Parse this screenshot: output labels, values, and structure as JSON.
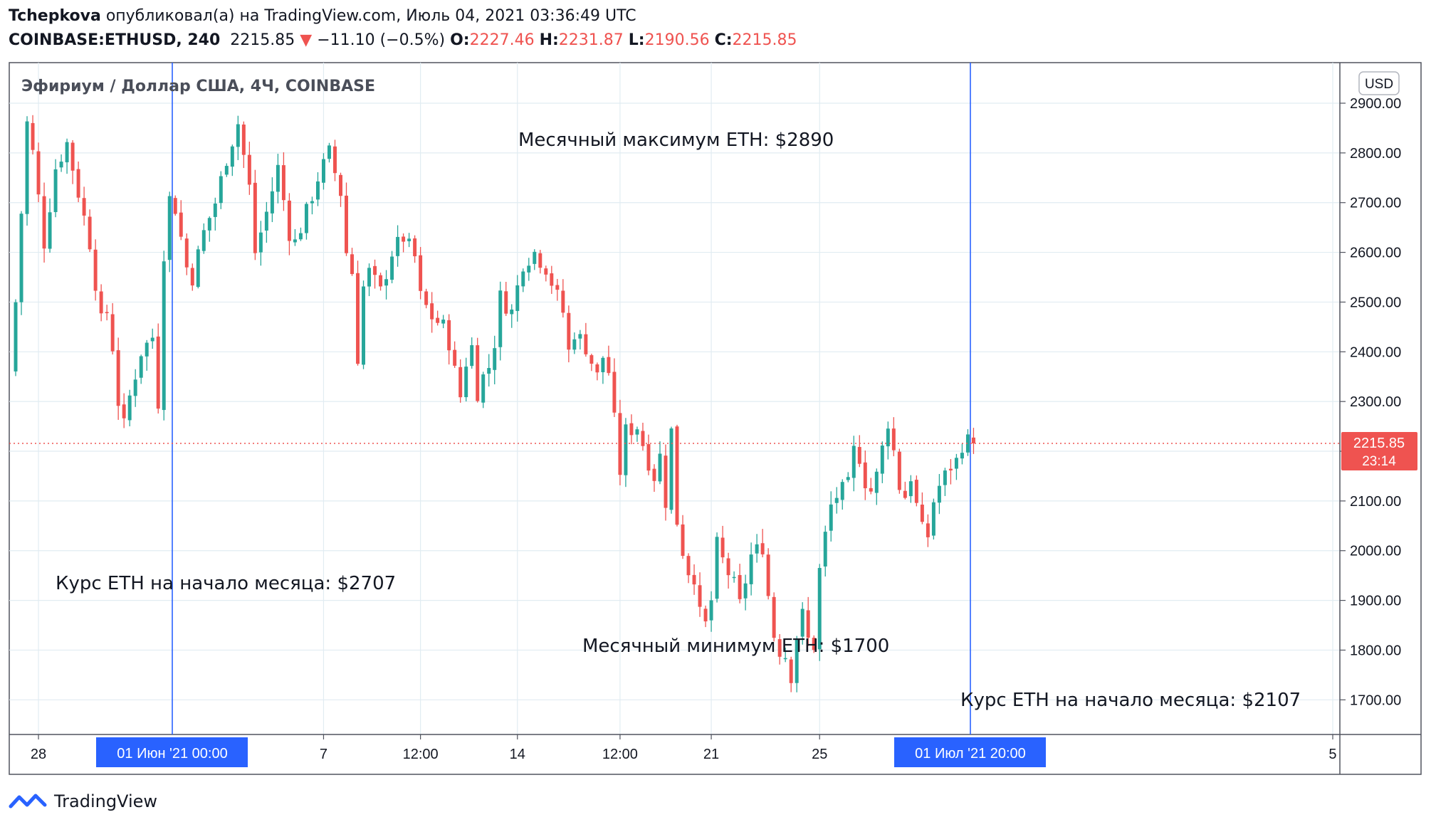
{
  "header": {
    "author": "Tchepkova",
    "published_text": "опубликовал(а) на TradingView.com, Июль 04, 2021 03:36:49 UTC",
    "symbol": "COINBASE:ETHUSD, 240",
    "last": "2215.85",
    "arrow": "▼",
    "change": "−11.10 (−0.5%)",
    "o_label": "O:",
    "o_value": "2227.46",
    "h_label": "H:",
    "h_value": "2231.87",
    "l_label": "L:",
    "l_value": "2190.56",
    "c_label": "C:",
    "c_value": "2215.85"
  },
  "colors": {
    "up": "#26a69a",
    "down": "#ef5350",
    "grid": "#e1ecf2",
    "frame": "#50535e",
    "vline": "#2962ff",
    "axis_text": "#131722",
    "label_bg": "#2962ff",
    "price_tag_bg": "#ef5350"
  },
  "chart_data": {
    "type": "candlestick",
    "title": "Эфириум / Доллар США, 4Ч, COINBASE",
    "currency_button": "USD",
    "y_ticks": [
      "2900.00",
      "2800.00",
      "2700.00",
      "2600.00",
      "2500.00",
      "2400.00",
      "2300.00",
      "2200.00",
      "2100.00",
      "2000.00",
      "1900.00",
      "1800.00",
      "1700.00"
    ],
    "y_tick_values": [
      2900,
      2800,
      2700,
      2600,
      2500,
      2400,
      2300,
      2200,
      2100,
      2000,
      1900,
      1800,
      1700
    ],
    "ylim": [
      1630,
      2950
    ],
    "x_ticks": [
      "28",
      "7",
      "12:00",
      "14",
      "12:00",
      "21",
      "25",
      "5"
    ],
    "x_tick_positions": [
      4,
      54,
      71,
      88,
      106,
      122,
      141,
      231
    ],
    "bar_count": 232,
    "date_marker_labels": [
      {
        "text": "01 Июн '21   00:00",
        "bar": 28
      },
      {
        "text": "01 Июл '21   20:00",
        "bar": 168
      }
    ],
    "current_price": {
      "value": 2215.85,
      "label": "2215.85",
      "countdown": "23:14"
    },
    "annotations": [
      {
        "text": "Месячный максимум ETH: $2890"
      },
      {
        "text": "Курс ETH на начало месяца: $2707"
      },
      {
        "text": "Месячный минимум ETH: $1700"
      },
      {
        "text": "Курс ETH на начало месяца: $2107"
      }
    ],
    "price_path": [
      [
        0,
        2400
      ],
      [
        1,
        2500
      ],
      [
        3,
        2860
      ],
      [
        4,
        2800
      ],
      [
        6,
        2620
      ],
      [
        8,
        2770
      ],
      [
        10,
        2820
      ],
      [
        12,
        2720
      ],
      [
        14,
        2620
      ],
      [
        16,
        2460
      ],
      [
        17,
        2480
      ],
      [
        18,
        2410
      ],
      [
        19,
        2300
      ],
      [
        20,
        2250
      ],
      [
        21,
        2310
      ],
      [
        23,
        2400
      ],
      [
        25,
        2430
      ],
      [
        26,
        2300
      ],
      [
        27,
        2600
      ],
      [
        28,
        2707
      ],
      [
        29,
        2690
      ],
      [
        31,
        2570
      ],
      [
        32,
        2550
      ],
      [
        34,
        2640
      ],
      [
        36,
        2700
      ],
      [
        38,
        2790
      ],
      [
        40,
        2860
      ],
      [
        42,
        2730
      ],
      [
        43,
        2600
      ],
      [
        45,
        2680
      ],
      [
        47,
        2770
      ],
      [
        49,
        2640
      ],
      [
        50,
        2620
      ],
      [
        52,
        2680
      ],
      [
        54,
        2750
      ],
      [
        56,
        2800
      ],
      [
        58,
        2720
      ],
      [
        59,
        2600
      ],
      [
        60,
        2560
      ],
      [
        61,
        2390
      ],
      [
        62,
        2530
      ],
      [
        63,
        2560
      ],
      [
        65,
        2520
      ],
      [
        67,
        2600
      ],
      [
        69,
        2630
      ],
      [
        71,
        2590
      ],
      [
        72,
        2510
      ],
      [
        74,
        2470
      ],
      [
        76,
        2450
      ],
      [
        77,
        2420
      ],
      [
        78,
        2360
      ],
      [
        79,
        2310
      ],
      [
        80,
        2380
      ],
      [
        81,
        2410
      ],
      [
        82,
        2320
      ],
      [
        83,
        2350
      ],
      [
        84,
        2370
      ],
      [
        85,
        2420
      ],
      [
        86,
        2510
      ],
      [
        88,
        2480
      ],
      [
        90,
        2580
      ],
      [
        92,
        2600
      ],
      [
        94,
        2570
      ],
      [
        96,
        2510
      ],
      [
        97,
        2480
      ],
      [
        98,
        2400
      ],
      [
        99,
        2440
      ],
      [
        101,
        2410
      ],
      [
        103,
        2350
      ],
      [
        104,
        2390
      ],
      [
        105,
        2360
      ],
      [
        106,
        2260
      ],
      [
        107,
        2160
      ],
      [
        108,
        2240
      ],
      [
        110,
        2250
      ],
      [
        112,
        2180
      ],
      [
        113,
        2150
      ],
      [
        114,
        2190
      ],
      [
        115,
        2100
      ],
      [
        116,
        2240
      ],
      [
        117,
        2060
      ],
      [
        118,
        2000
      ],
      [
        119,
        1960
      ],
      [
        120,
        1950
      ],
      [
        121,
        1870
      ],
      [
        122,
        1850
      ],
      [
        123,
        1900
      ],
      [
        124,
        2010
      ],
      [
        125,
        1980
      ],
      [
        127,
        1930
      ],
      [
        128,
        1890
      ],
      [
        129,
        1940
      ],
      [
        130,
        1990
      ],
      [
        132,
        2010
      ],
      [
        133,
        1910
      ],
      [
        134,
        1830
      ],
      [
        135,
        1800
      ],
      [
        136,
        1790
      ],
      [
        137,
        1750
      ],
      [
        138,
        1830
      ],
      [
        139,
        1870
      ],
      [
        140,
        1820
      ],
      [
        141,
        1810
      ],
      [
        142,
        1960
      ],
      [
        143,
        2030
      ],
      [
        144,
        2090
      ],
      [
        145,
        2110
      ],
      [
        147,
        2130
      ],
      [
        148,
        2200
      ],
      [
        149,
        2190
      ],
      [
        150,
        2140
      ],
      [
        151,
        2120
      ],
      [
        152,
        2150
      ],
      [
        154,
        2260
      ],
      [
        155,
        2200
      ],
      [
        156,
        2130
      ],
      [
        157,
        2110
      ],
      [
        158,
        2150
      ],
      [
        159,
        2090
      ],
      [
        160,
        2040
      ],
      [
        161,
        2030
      ],
      [
        162,
        2100
      ],
      [
        163,
        2130
      ],
      [
        165,
        2170
      ],
      [
        166,
        2180
      ],
      [
        167,
        2215
      ],
      [
        168,
        2220
      ]
    ]
  },
  "footer": {
    "brand": "TradingView"
  }
}
